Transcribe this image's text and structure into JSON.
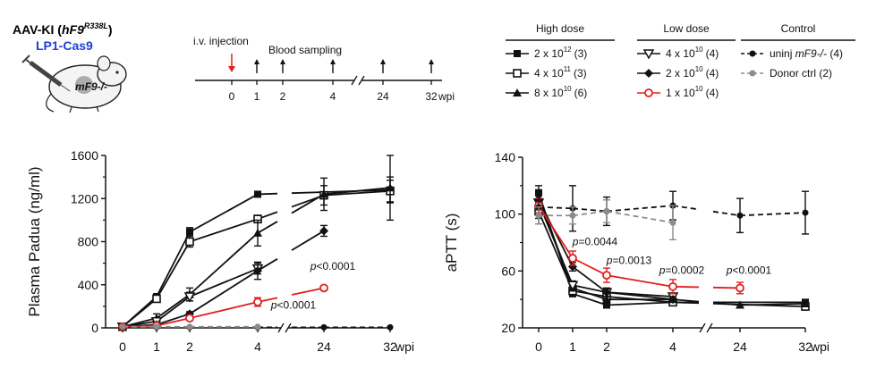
{
  "header": {
    "model_title_prefix": "AAV-KI (",
    "model_gene": "hF9",
    "model_mutation": "R338L",
    "model_title_suffix": ")",
    "vector_label": "LP1-Cas9",
    "mouse_label": "mF9-/-",
    "vector_color": "#1d3fd6",
    "mouse_label_color": "#d8306a"
  },
  "timeline": {
    "injection_label": "i.v. injection",
    "sampling_label": "Blood sampling",
    "ticks": [
      "0",
      "1",
      "2",
      "4",
      "24",
      "32"
    ],
    "unit": "wpi",
    "injection_color": "#e0201e"
  },
  "legend": {
    "groups": [
      {
        "title": "High dose",
        "items": [
          {
            "dose": "2 x 10",
            "exp": "12",
            "n": "(3)",
            "marker": "filled-square"
          },
          {
            "dose": "4 x 10",
            "exp": "11",
            "n": "(3)",
            "marker": "open-square"
          },
          {
            "dose": "8 x 10",
            "exp": "10",
            "n": "(6)",
            "marker": "filled-triangle"
          }
        ]
      },
      {
        "title": "Low dose",
        "items": [
          {
            "dose": "4 x 10",
            "exp": "10",
            "n": "(4)",
            "marker": "open-triangle-down"
          },
          {
            "dose": "2 x 10",
            "exp": "10",
            "n": "(4)",
            "marker": "filled-diamond"
          },
          {
            "dose": "1 x 10",
            "exp": "10",
            "n": "(4)",
            "marker": "open-circle-red"
          }
        ]
      },
      {
        "title": "Control",
        "items": [
          {
            "prefix": "uninj ",
            "italic": "mF9-/-",
            "n": " (4)",
            "marker": "filled-circle-dashed"
          },
          {
            "prefix": "Donor ctrl",
            "italic": "",
            "n": " (2)",
            "marker": "grey-circle-dashed"
          }
        ]
      }
    ],
    "colors": {
      "black": "#111111",
      "red": "#e0201e",
      "grey": "#8c8c8c"
    }
  },
  "chart_data": [
    {
      "type": "line",
      "xlabel": "",
      "unit": "wpi",
      "ylabel": "Plasma Padua (ng/ml)",
      "x": [
        0,
        1,
        2,
        4,
        24,
        32
      ],
      "x_ticks": [
        "0",
        "1",
        "2",
        "4",
        "24",
        "32"
      ],
      "ylim": [
        0,
        1600
      ],
      "y_ticks": [
        "0",
        "400",
        "800",
        "1200",
        "1600"
      ],
      "series": [
        {
          "name": "2 x 10^12 (3)",
          "marker": "filled-square",
          "color": "#111111",
          "values": [
            10,
            290,
            890,
            1240,
            null,
            1280
          ],
          "err": [
            10,
            25,
            40,
            25,
            null,
            120
          ]
        },
        {
          "name": "4 x 10^11 (3)",
          "marker": "open-square",
          "color": "#111111",
          "values": [
            10,
            270,
            800,
            1010,
            1230,
            1270
          ],
          "err": [
            10,
            20,
            50,
            35,
            90,
            100
          ]
        },
        {
          "name": "8 x 10^10 (6)",
          "marker": "filled-triangle",
          "color": "#111111",
          "values": [
            10,
            90,
            310,
            880,
            1240,
            1300
          ],
          "err": [
            10,
            40,
            60,
            120,
            150,
            300
          ]
        },
        {
          "name": "4 x 10^10 (4)",
          "marker": "open-triangle-down",
          "color": "#111111",
          "values": [
            10,
            60,
            290,
            550,
            null,
            null
          ],
          "err": [
            10,
            30,
            40,
            50,
            null,
            null
          ]
        },
        {
          "name": "2 x 10^10 (4)",
          "marker": "filled-diamond",
          "color": "#111111",
          "values": [
            10,
            30,
            130,
            530,
            900,
            null
          ],
          "err": [
            10,
            10,
            20,
            80,
            50,
            null
          ]
        },
        {
          "name": "1 x 10^10 (4)",
          "marker": "open-circle-red",
          "color": "#e0201e",
          "values": [
            10,
            20,
            90,
            240,
            370,
            null
          ],
          "err": [
            10,
            10,
            20,
            40,
            20,
            null
          ]
        },
        {
          "name": "uninj mF9-/- (4)",
          "marker": "filled-circle-dashed",
          "color": "#111111",
          "values": [
            5,
            5,
            5,
            5,
            5,
            5
          ],
          "err": [
            0,
            0,
            0,
            0,
            0,
            0
          ]
        },
        {
          "name": "Donor ctrl (2)",
          "marker": "grey-circle-dashed",
          "color": "#8c8c8c",
          "values": [
            10,
            10,
            10,
            10,
            null,
            null
          ],
          "err": [
            0,
            0,
            0,
            0,
            null,
            null
          ]
        }
      ],
      "annotations": [
        {
          "text": "p<0.0001",
          "x": 24,
          "y": 540
        },
        {
          "text": "p<0.0001",
          "x": 4,
          "y": 180
        }
      ]
    },
    {
      "type": "line",
      "xlabel": "",
      "unit": "wpi",
      "ylabel": "aPTT (s)",
      "x": [
        0,
        1,
        2,
        4,
        24,
        32
      ],
      "x_ticks": [
        "0",
        "1",
        "2",
        "4",
        "24",
        "32"
      ],
      "ylim": [
        20,
        140
      ],
      "y_ticks": [
        "20",
        "60",
        "100",
        "140"
      ],
      "series": [
        {
          "name": "2 x 10^12 (3)",
          "marker": "filled-square",
          "color": "#111111",
          "values": [
            115,
            44,
            36,
            38,
            null,
            38
          ],
          "err": [
            5,
            2,
            2,
            2,
            null,
            2
          ]
        },
        {
          "name": "4 x 10^11 (3)",
          "marker": "open-square",
          "color": "#111111",
          "values": [
            102,
            46,
            42,
            38,
            null,
            35
          ],
          "err": [
            5,
            2,
            2,
            2,
            null,
            2
          ]
        },
        {
          "name": "8 x 10^10 (6)",
          "marker": "filled-triangle",
          "color": "#111111",
          "values": [
            112,
            48,
            40,
            40,
            36,
            37
          ],
          "err": [
            5,
            2,
            2,
            2,
            2,
            2
          ]
        },
        {
          "name": "4 x 10^10 (4)",
          "marker": "open-triangle-down",
          "color": "#111111",
          "values": [
            108,
            50,
            45,
            42,
            null,
            null
          ],
          "err": [
            5,
            3,
            3,
            2,
            null,
            null
          ]
        },
        {
          "name": "2 x 10^10 (4)",
          "marker": "filled-diamond",
          "color": "#111111",
          "values": [
            110,
            63,
            45,
            40,
            null,
            null
          ],
          "err": [
            5,
            3,
            3,
            2,
            null,
            null
          ]
        },
        {
          "name": "1 x 10^10 (4)",
          "marker": "open-circle-red",
          "color": "#e0201e",
          "values": [
            106,
            69,
            57,
            49,
            48,
            null
          ],
          "err": [
            5,
            5,
            5,
            5,
            4,
            null
          ]
        },
        {
          "name": "uninj mF9-/- (4)",
          "marker": "filled-circle-dashed",
          "color": "#111111",
          "values": [
            105,
            104,
            102,
            106,
            99,
            101
          ],
          "err": [
            12,
            16,
            10,
            10,
            12,
            15
          ]
        },
        {
          "name": "Donor ctrl (2)",
          "marker": "grey-circle-dashed",
          "color": "#8c8c8c",
          "values": [
            99,
            99,
            102,
            94,
            null,
            null
          ],
          "err": [
            6,
            6,
            8,
            12,
            null,
            null
          ]
        }
      ],
      "annotations": [
        {
          "text": "p=0.0044",
          "x": 1,
          "y": 78
        },
        {
          "text": "p=0.0013",
          "x": 2,
          "y": 65
        },
        {
          "text": "p=0.0002",
          "x": 4,
          "y": 58
        },
        {
          "text": "p<0.0001",
          "x": 24,
          "y": 58
        }
      ]
    }
  ]
}
